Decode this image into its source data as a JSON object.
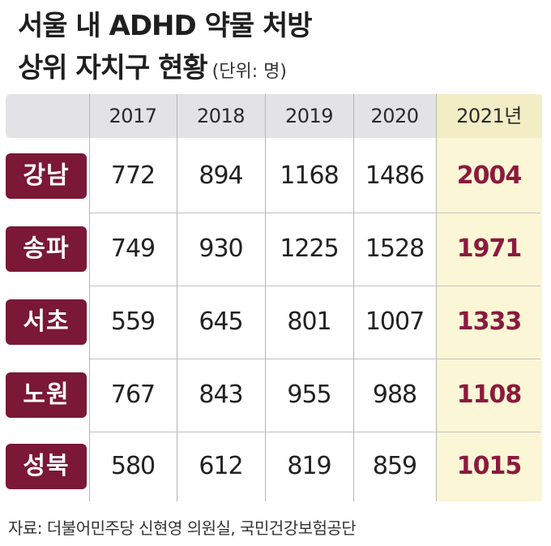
{
  "chart_data": {
    "type": "table",
    "title_line1": "서울 내 ADHD 약물 처방",
    "title_line2": "상위 자치구 현황",
    "unit": "(단위: 명)",
    "columns": [
      "2017",
      "2018",
      "2019",
      "2020",
      "2021년"
    ],
    "rows": [
      {
        "name": "강남",
        "values": [
          "772",
          "894",
          "1168",
          "1486",
          "2004"
        ]
      },
      {
        "name": "송파",
        "values": [
          "749",
          "930",
          "1225",
          "1528",
          "1971"
        ]
      },
      {
        "name": "서초",
        "values": [
          "559",
          "645",
          "801",
          "1007",
          "1333"
        ]
      },
      {
        "name": "노원",
        "values": [
          "767",
          "843",
          "955",
          "988",
          "1108"
        ]
      },
      {
        "name": "성북",
        "values": [
          "580",
          "612",
          "819",
          "859",
          "1015"
        ]
      }
    ],
    "highlight_column": "2021년",
    "source": "자료: 더불어민주당 신현영 의원실, 국민건강보험공단"
  },
  "colors": {
    "label_bg": "#7b1737",
    "highlight_text": "#8b1a3e",
    "highlight_bg": "#fbf6d5",
    "header_bg": "#e3e3e5"
  }
}
